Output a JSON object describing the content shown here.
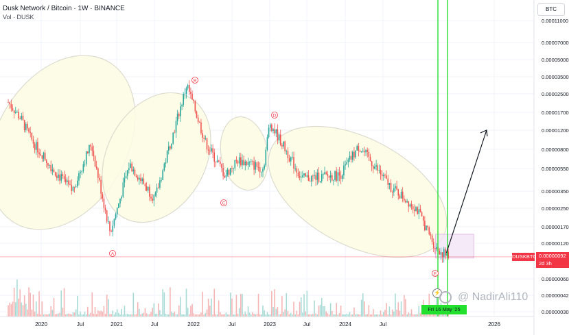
{
  "header": {
    "title": "Dusk Network / Bitcoin · 1W · BINANCE",
    "volume_label": "Vol · DUSK"
  },
  "currency_chip": "BTC",
  "symbol_tag": "DUSKBTC",
  "last_price": {
    "value": "0.00000092",
    "countdown": "2d 3h",
    "color": "#f23645"
  },
  "date_box": "Fri 16 May '25",
  "watermark": "@ NadirAli110",
  "colors": {
    "up": "#26a69a",
    "down": "#ef5350",
    "ellipse_fill": "#fdfbe3",
    "ellipse_stroke": "#dcdbcf",
    "highlight": "#23e02f"
  },
  "chart_data": {
    "type": "candlestick",
    "title": "Dusk Network / Bitcoin · 1W · BINANCE",
    "y_scale": "log",
    "y_ticks": [
      "0.00011000",
      "0.00007000",
      "0.00005000",
      "0.00003500",
      "0.00002500",
      "0.00001700",
      "0.00001200",
      "0.00000800",
      "0.00000550",
      "0.00000350",
      "0.00000250",
      "0.00000170",
      "0.00000120",
      "0.00000060",
      "0.00000042",
      "0.00000030"
    ],
    "x_ticks": [
      "2020",
      "Jul",
      "2021",
      "Jul",
      "2022",
      "Jul",
      "2023",
      "Jul",
      "2024",
      "Jul",
      "2026"
    ],
    "wave_labels": [
      "A",
      "B",
      "C",
      "D",
      "E",
      "E"
    ],
    "price_path": [
      {
        "date": "2019-08",
        "price": 2.1e-05
      },
      {
        "date": "2019-10",
        "price": 1.5e-05
      },
      {
        "date": "2019-12",
        "price": 9e-06
      },
      {
        "date": "2020-03",
        "price": 5.5e-06
      },
      {
        "date": "2020-06",
        "price": 3.5e-06
      },
      {
        "date": "2020-09",
        "price": 9e-06
      },
      {
        "date": "2020-12",
        "price": 1.5e-06
      },
      {
        "date": "2021-03",
        "price": 6e-06
      },
      {
        "date": "2021-07",
        "price": 3e-06
      },
      {
        "date": "2021-12",
        "price": 3e-05
      },
      {
        "date": "2022-03",
        "price": 9e-06
      },
      {
        "date": "2022-06",
        "price": 4.8e-06
      },
      {
        "date": "2022-08",
        "price": 6.5e-06
      },
      {
        "date": "2022-12",
        "price": 5.5e-06
      },
      {
        "date": "2023-01",
        "price": 1.4e-05
      },
      {
        "date": "2023-06",
        "price": 4.5e-06
      },
      {
        "date": "2023-12",
        "price": 4.8e-06
      },
      {
        "date": "2024-03",
        "price": 8.5e-06
      },
      {
        "date": "2024-08",
        "price": 3.8e-06
      },
      {
        "date": "2024-12",
        "price": 2.5e-06
      },
      {
        "date": "2025-03",
        "price": 1.1e-06
      },
      {
        "date": "2025-05",
        "price": 9.2e-07
      }
    ],
    "projection": {
      "from": "2025-06",
      "to": "2025-11",
      "target_price": 8e-06
    },
    "annotations": {
      "current_price_line": 9.2e-07,
      "range_box": {
        "from": "2025-03",
        "to": "2025-09",
        "low": 9e-07,
        "high": 1.45e-06
      }
    },
    "grid": true,
    "legend": "none"
  }
}
